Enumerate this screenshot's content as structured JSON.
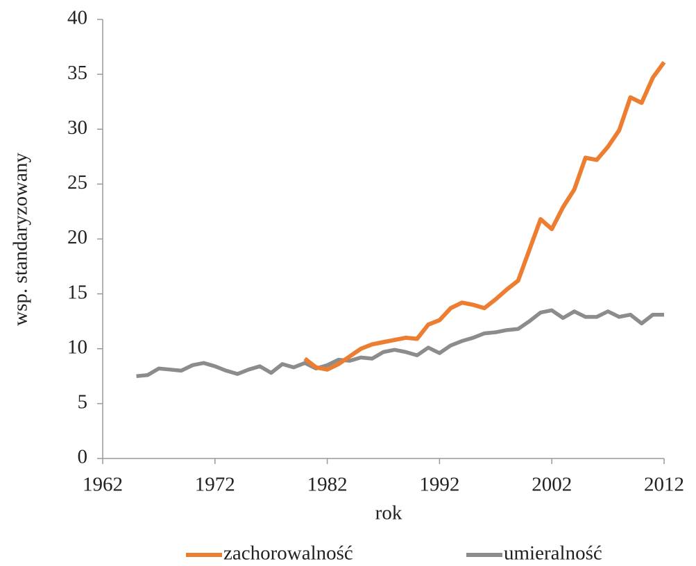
{
  "chart_data": {
    "type": "line",
    "xlabel": "rok",
    "ylabel": "wsp. standaryzowany",
    "x": [
      1965,
      1966,
      1967,
      1968,
      1969,
      1970,
      1971,
      1972,
      1973,
      1974,
      1975,
      1976,
      1977,
      1978,
      1979,
      1980,
      1981,
      1982,
      1983,
      1984,
      1985,
      1986,
      1987,
      1988,
      1989,
      1990,
      1991,
      1992,
      1993,
      1994,
      1995,
      1996,
      1997,
      1998,
      1999,
      2000,
      2001,
      2002,
      2003,
      2004,
      2005,
      2006,
      2007,
      2008,
      2009,
      2010,
      2011,
      2012
    ],
    "series": [
      {
        "name": "zachorowalność",
        "color": "#ed7d31",
        "values": [
          null,
          null,
          null,
          null,
          null,
          null,
          null,
          null,
          null,
          null,
          null,
          null,
          null,
          null,
          null,
          9.1,
          8.3,
          8.1,
          8.6,
          9.3,
          10.0,
          10.4,
          10.6,
          10.8,
          11.0,
          10.9,
          12.2,
          12.6,
          13.7,
          14.2,
          14.0,
          13.7,
          14.5,
          15.4,
          16.2,
          19.0,
          21.8,
          20.9,
          22.9,
          24.5,
          27.4,
          27.2,
          28.4,
          29.9,
          32.9,
          32.4,
          34.7,
          36.1
        ]
      },
      {
        "name": "umieralność",
        "color": "#8c8c8c",
        "values": [
          7.5,
          7.6,
          8.2,
          8.1,
          8.0,
          8.5,
          8.7,
          8.4,
          8.0,
          7.7,
          8.1,
          8.4,
          7.8,
          8.6,
          8.3,
          8.7,
          8.2,
          8.5,
          9.0,
          8.9,
          9.2,
          9.1,
          9.7,
          9.9,
          9.7,
          9.4,
          10.1,
          9.6,
          10.3,
          10.7,
          11.0,
          11.4,
          11.5,
          11.7,
          11.8,
          12.5,
          13.3,
          13.5,
          12.8,
          13.4,
          12.9,
          12.9,
          13.4,
          12.9,
          13.1,
          12.3,
          13.1,
          13.1
        ]
      }
    ],
    "xlim": [
      1962,
      2012
    ],
    "xticks": [
      1962,
      1972,
      1982,
      1992,
      2002,
      2012
    ],
    "ylim": [
      0,
      40
    ],
    "yticks": [
      0,
      5,
      10,
      15,
      20,
      25,
      30,
      35,
      40
    ],
    "legend": "bottom"
  }
}
